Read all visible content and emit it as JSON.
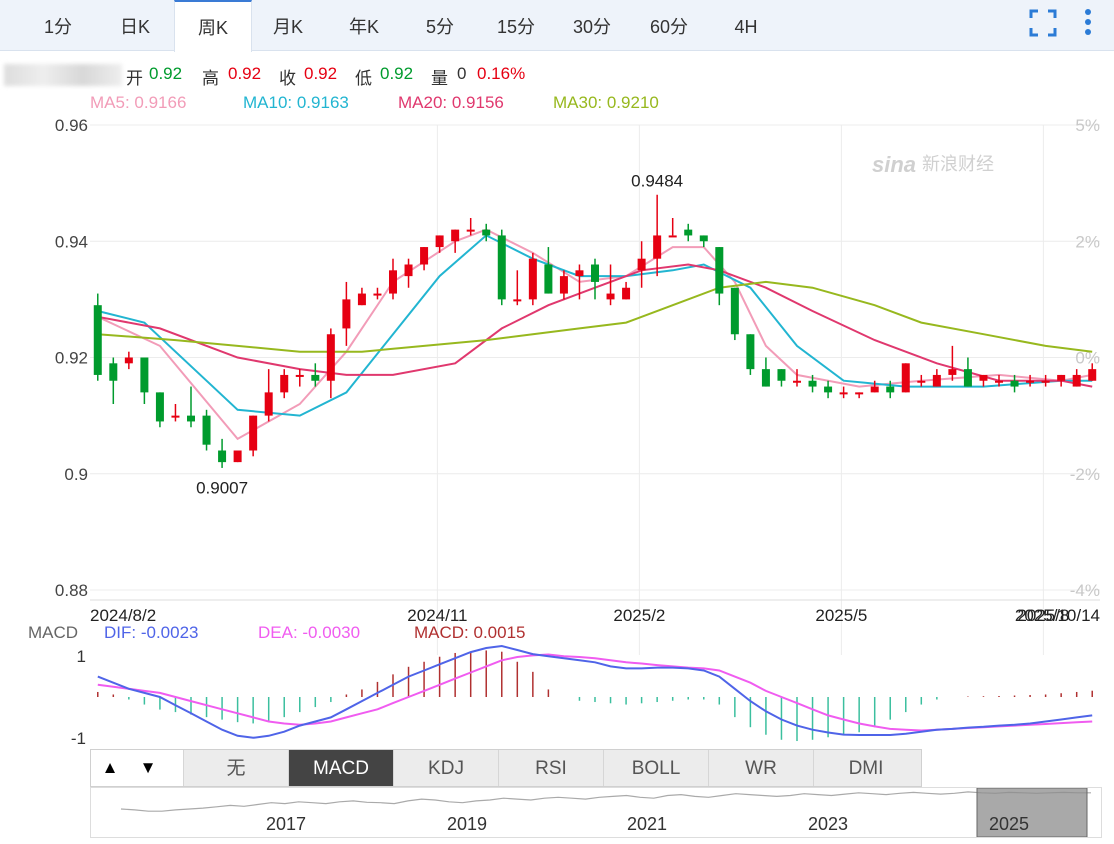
{
  "tabs": [
    "1分",
    "日K",
    "周K",
    "月K",
    "年K",
    "5分",
    "15分",
    "30分",
    "60分",
    "4H"
  ],
  "active_tab": "周K",
  "icons": {
    "fullscreen": "fullscreen-icon",
    "more": "more-vertical-icon"
  },
  "quote": {
    "open_label": "开",
    "open": "0.92",
    "high_label": "高",
    "high": "0.92",
    "close_label": "收",
    "close": "0.92",
    "low_label": "低",
    "low": "0.92",
    "volume_label": "量",
    "volume": "0",
    "change": "0.16%"
  },
  "ma_legend": [
    {
      "label": "MA5: 0.9166",
      "color": "#f29cb8"
    },
    {
      "label": "MA10: 0.9163",
      "color": "#22b5d1"
    },
    {
      "label": "MA20: 0.9156",
      "color": "#e0386e"
    },
    {
      "label": "MA30: 0.9210",
      "color": "#97b81e"
    }
  ],
  "watermark": "sina 新浪财经",
  "colors": {
    "up": "#e60012",
    "down": "#009b2d",
    "dif": "#4f64e8",
    "dea": "#f05cf0"
  },
  "chart_data": [
    {
      "type": "candlestick",
      "y_axis": {
        "ticks": [
          "0.96",
          "0.94",
          "0.92",
          "0.9",
          "0.88"
        ],
        "ylim": [
          0.88,
          0.96
        ]
      },
      "pct_axis": {
        "ticks": [
          "5%",
          "2%",
          "0%",
          "-2%",
          "-4%"
        ]
      },
      "x_labels": [
        "2024/8/2",
        "2024/11",
        "2025/2",
        "2025/5",
        "2025/8",
        "2025/10/14"
      ],
      "annotations": [
        {
          "text": "0.9484",
          "x_week": 36,
          "value": 0.9484
        },
        {
          "text": "0.9007",
          "x_week": 8,
          "value": 0.9007
        }
      ],
      "candles": [
        [
          0.929,
          0.917,
          0.931,
          0.916
        ],
        [
          0.919,
          0.916,
          0.92,
          0.912
        ],
        [
          0.919,
          0.92,
          0.921,
          0.918
        ],
        [
          0.92,
          0.914,
          0.92,
          0.912
        ],
        [
          0.914,
          0.909,
          0.914,
          0.908
        ],
        [
          0.91,
          0.91,
          0.912,
          0.909
        ],
        [
          0.91,
          0.909,
          0.915,
          0.908
        ],
        [
          0.91,
          0.905,
          0.911,
          0.904
        ],
        [
          0.904,
          0.902,
          0.906,
          0.901
        ],
        [
          0.902,
          0.904,
          0.904,
          0.902
        ],
        [
          0.904,
          0.91,
          0.91,
          0.903
        ],
        [
          0.91,
          0.914,
          0.918,
          0.909
        ],
        [
          0.914,
          0.917,
          0.918,
          0.913
        ],
        [
          0.917,
          0.917,
          0.918,
          0.915
        ],
        [
          0.917,
          0.916,
          0.919,
          0.915
        ],
        [
          0.916,
          0.924,
          0.925,
          0.913
        ],
        [
          0.925,
          0.93,
          0.933,
          0.922
        ],
        [
          0.929,
          0.931,
          0.932,
          0.929
        ],
        [
          0.931,
          0.931,
          0.932,
          0.93
        ],
        [
          0.931,
          0.935,
          0.937,
          0.93
        ],
        [
          0.934,
          0.936,
          0.937,
          0.932
        ],
        [
          0.936,
          0.939,
          0.939,
          0.935
        ],
        [
          0.939,
          0.941,
          0.941,
          0.938
        ],
        [
          0.94,
          0.942,
          0.942,
          0.938
        ],
        [
          0.942,
          0.942,
          0.944,
          0.941
        ],
        [
          0.942,
          0.941,
          0.943,
          0.94
        ],
        [
          0.941,
          0.93,
          0.942,
          0.929
        ],
        [
          0.93,
          0.93,
          0.935,
          0.929
        ],
        [
          0.93,
          0.937,
          0.938,
          0.929
        ],
        [
          0.936,
          0.931,
          0.939,
          0.931
        ],
        [
          0.931,
          0.934,
          0.935,
          0.93
        ],
        [
          0.934,
          0.935,
          0.936,
          0.93
        ],
        [
          0.936,
          0.933,
          0.937,
          0.93
        ],
        [
          0.93,
          0.931,
          0.936,
          0.929
        ],
        [
          0.93,
          0.932,
          0.933,
          0.93
        ],
        [
          0.935,
          0.937,
          0.94,
          0.932
        ],
        [
          0.937,
          0.941,
          0.948,
          0.934
        ],
        [
          0.941,
          0.941,
          0.944,
          0.941
        ],
        [
          0.942,
          0.941,
          0.943,
          0.94
        ],
        [
          0.941,
          0.94,
          0.941,
          0.939
        ],
        [
          0.939,
          0.931,
          0.939,
          0.929
        ],
        [
          0.932,
          0.924,
          0.932,
          0.923
        ],
        [
          0.924,
          0.918,
          0.924,
          0.917
        ],
        [
          0.918,
          0.915,
          0.92,
          0.915
        ],
        [
          0.918,
          0.916,
          0.918,
          0.915
        ],
        [
          0.916,
          0.916,
          0.918,
          0.915
        ],
        [
          0.916,
          0.915,
          0.917,
          0.914
        ],
        [
          0.915,
          0.914,
          0.916,
          0.913
        ],
        [
          0.914,
          0.914,
          0.915,
          0.913
        ],
        [
          0.914,
          0.914,
          0.914,
          0.913
        ],
        [
          0.914,
          0.915,
          0.916,
          0.914
        ],
        [
          0.915,
          0.914,
          0.916,
          0.913
        ],
        [
          0.914,
          0.919,
          0.919,
          0.914
        ],
        [
          0.916,
          0.916,
          0.917,
          0.915
        ],
        [
          0.915,
          0.917,
          0.918,
          0.915
        ],
        [
          0.917,
          0.918,
          0.922,
          0.916
        ],
        [
          0.918,
          0.915,
          0.92,
          0.915
        ],
        [
          0.916,
          0.917,
          0.917,
          0.915
        ],
        [
          0.916,
          0.916,
          0.917,
          0.915
        ],
        [
          0.916,
          0.915,
          0.917,
          0.914
        ],
        [
          0.916,
          0.916,
          0.917,
          0.915
        ],
        [
          0.916,
          0.916,
          0.917,
          0.915
        ],
        [
          0.916,
          0.917,
          0.917,
          0.915
        ],
        [
          0.915,
          0.917,
          0.918,
          0.915
        ],
        [
          0.916,
          0.918,
          0.919,
          0.916
        ]
      ],
      "ma_series": [
        {
          "name": "MA5",
          "values": [
            [
              0,
              0.927
            ],
            [
              4,
              0.922
            ],
            [
              9,
              0.906
            ],
            [
              13,
              0.912
            ],
            [
              16,
              0.921
            ],
            [
              19,
              0.933
            ],
            [
              23,
              0.94
            ],
            [
              25,
              0.942
            ],
            [
              28,
              0.938
            ],
            [
              31,
              0.933
            ],
            [
              34,
              0.934
            ],
            [
              37,
              0.939
            ],
            [
              39,
              0.939
            ],
            [
              41,
              0.933
            ],
            [
              43,
              0.922
            ],
            [
              45,
              0.917
            ],
            [
              49,
              0.915
            ],
            [
              53,
              0.916
            ],
            [
              58,
              0.917
            ],
            [
              62,
              0.916
            ],
            [
              64,
              0.917
            ]
          ]
        },
        {
          "name": "MA10",
          "values": [
            [
              0,
              0.928
            ],
            [
              3,
              0.926
            ],
            [
              7,
              0.916
            ],
            [
              9,
              0.911
            ],
            [
              13,
              0.91
            ],
            [
              16,
              0.914
            ],
            [
              19,
              0.924
            ],
            [
              22,
              0.934
            ],
            [
              25,
              0.941
            ],
            [
              28,
              0.937
            ],
            [
              31,
              0.934
            ],
            [
              34,
              0.934
            ],
            [
              37,
              0.935
            ],
            [
              39,
              0.936
            ],
            [
              42,
              0.932
            ],
            [
              45,
              0.922
            ],
            [
              48,
              0.916
            ],
            [
              52,
              0.915
            ],
            [
              57,
              0.915
            ],
            [
              62,
              0.916
            ],
            [
              64,
              0.916
            ]
          ]
        },
        {
          "name": "MA20",
          "values": [
            [
              0,
              0.927
            ],
            [
              4,
              0.925
            ],
            [
              9,
              0.92
            ],
            [
              13,
              0.918
            ],
            [
              16,
              0.917
            ],
            [
              19,
              0.917
            ],
            [
              23,
              0.919
            ],
            [
              26,
              0.925
            ],
            [
              29,
              0.929
            ],
            [
              32,
              0.932
            ],
            [
              35,
              0.935
            ],
            [
              38,
              0.936
            ],
            [
              40,
              0.935
            ],
            [
              43,
              0.932
            ],
            [
              46,
              0.928
            ],
            [
              50,
              0.923
            ],
            [
              54,
              0.919
            ],
            [
              58,
              0.916
            ],
            [
              62,
              0.916
            ],
            [
              64,
              0.915
            ]
          ]
        },
        {
          "name": "MA30",
          "values": [
            [
              0,
              0.924
            ],
            [
              5,
              0.923
            ],
            [
              9,
              0.922
            ],
            [
              13,
              0.921
            ],
            [
              17,
              0.921
            ],
            [
              21,
              0.922
            ],
            [
              25,
              0.923
            ],
            [
              28,
              0.924
            ],
            [
              31,
              0.925
            ],
            [
              34,
              0.926
            ],
            [
              37,
              0.929
            ],
            [
              40,
              0.932
            ],
            [
              43,
              0.933
            ],
            [
              46,
              0.932
            ],
            [
              50,
              0.929
            ],
            [
              53,
              0.926
            ],
            [
              57,
              0.924
            ],
            [
              61,
              0.922
            ],
            [
              64,
              0.921
            ]
          ]
        }
      ]
    },
    {
      "type": "macd",
      "title": "MACD",
      "legend": [
        {
          "label": "DIF: -0.0023",
          "color": "#4f64e8"
        },
        {
          "label": "DEA: -0.0030",
          "color": "#f05cf0"
        },
        {
          "label": "MACD: 0.0015",
          "color": "#b03030"
        }
      ],
      "y_ticks": [
        "1",
        "-1"
      ],
      "ylim": [
        -1.2,
        1.2
      ],
      "dif": [
        0.5,
        0.35,
        0.2,
        0.1,
        0.0,
        -0.2,
        -0.4,
        -0.6,
        -0.8,
        -0.95,
        -1.0,
        -0.95,
        -0.85,
        -0.7,
        -0.6,
        -0.5,
        -0.3,
        -0.1,
        0.1,
        0.3,
        0.5,
        0.65,
        0.8,
        0.95,
        1.1,
        1.2,
        1.25,
        1.15,
        1.05,
        1.0,
        0.95,
        0.9,
        0.85,
        0.75,
        0.7,
        0.7,
        0.72,
        0.72,
        0.7,
        0.65,
        0.5,
        0.2,
        -0.1,
        -0.35,
        -0.55,
        -0.7,
        -0.8,
        -0.87,
        -0.92,
        -0.93,
        -0.93,
        -0.93,
        -0.9,
        -0.85,
        -0.8,
        -0.78,
        -0.75,
        -0.73,
        -0.7,
        -0.68,
        -0.65,
        -0.6,
        -0.55,
        -0.5,
        -0.45
      ],
      "dea": [
        0.3,
        0.25,
        0.2,
        0.15,
        0.1,
        0.0,
        -0.1,
        -0.2,
        -0.3,
        -0.4,
        -0.5,
        -0.6,
        -0.65,
        -0.68,
        -0.65,
        -0.6,
        -0.5,
        -0.4,
        -0.3,
        -0.15,
        0.0,
        0.15,
        0.3,
        0.45,
        0.6,
        0.75,
        0.9,
        0.98,
        1.02,
        1.04,
        1.0,
        0.98,
        0.95,
        0.9,
        0.85,
        0.82,
        0.78,
        0.75,
        0.72,
        0.7,
        0.65,
        0.5,
        0.35,
        0.15,
        0.0,
        -0.15,
        -0.3,
        -0.45,
        -0.55,
        -0.65,
        -0.72,
        -0.78,
        -0.8,
        -0.82,
        -0.8,
        -0.78,
        -0.76,
        -0.74,
        -0.72,
        -0.7,
        -0.68,
        -0.66,
        -0.64,
        -0.62,
        -0.6
      ],
      "hist": [
        0.2,
        0.1,
        -0.1,
        -0.3,
        -0.5,
        -0.6,
        -0.7,
        -0.8,
        -0.9,
        -1.0,
        -1.05,
        -0.95,
        -0.8,
        -0.6,
        -0.4,
        -0.2,
        0.1,
        0.3,
        0.6,
        0.9,
        1.2,
        1.4,
        1.6,
        1.75,
        1.8,
        1.85,
        1.8,
        1.4,
        1.0,
        0.3,
        0.0,
        -0.15,
        -0.2,
        -0.25,
        -0.3,
        -0.25,
        -0.2,
        -0.15,
        -0.1,
        -0.1,
        -0.3,
        -0.8,
        -1.2,
        -1.5,
        -1.7,
        -1.75,
        -1.7,
        -1.6,
        -1.5,
        -1.4,
        -1.2,
        -0.9,
        -0.6,
        -0.3,
        -0.1,
        0.0,
        0.02,
        0.03,
        0.04,
        0.06,
        0.08,
        0.1,
        0.15,
        0.2,
        0.25
      ]
    },
    {
      "type": "area",
      "title": "navigator",
      "x_labels": [
        "2017",
        "2019",
        "2021",
        "2023",
        "2025"
      ],
      "values": [
        0.6,
        0.58,
        0.55,
        0.55,
        0.58,
        0.6,
        0.62,
        0.65,
        0.68,
        0.66,
        0.7,
        0.74,
        0.72,
        0.76,
        0.74,
        0.72,
        0.76,
        0.78,
        0.75,
        0.74,
        0.72,
        0.78,
        0.82,
        0.8,
        0.76,
        0.74,
        0.78,
        0.8,
        0.84,
        0.82,
        0.8,
        0.84,
        0.86,
        0.84,
        0.82,
        0.86,
        0.88,
        0.9,
        0.86,
        0.84,
        0.9,
        0.92,
        0.88,
        0.86,
        0.9,
        0.94,
        0.92,
        0.9,
        0.88,
        0.9,
        0.94,
        0.92,
        0.9,
        0.93,
        0.96,
        0.94,
        0.92,
        0.95,
        0.97,
        0.95,
        0.93,
        0.95,
        0.98,
        0.96,
        0.95,
        0.97,
        0.96,
        0.95,
        0.96,
        0.97,
        0.96,
        0.96
      ]
    }
  ],
  "indicator_bar": {
    "up_arrow": "▲",
    "down_arrow": "▼",
    "items": [
      "无",
      "MACD",
      "KDJ",
      "RSI",
      "BOLL",
      "WR",
      "DMI"
    ],
    "active": "MACD"
  }
}
